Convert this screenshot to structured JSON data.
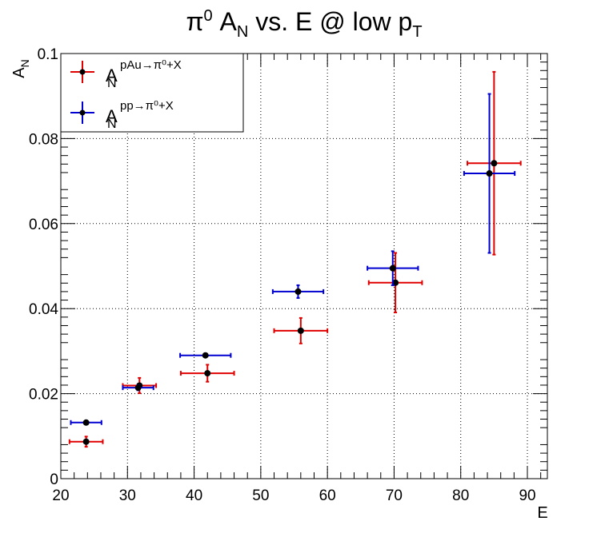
{
  "chart_data": {
    "type": "scatter",
    "title": "π⁰ A_N vs. E @ low p_T",
    "title_parts": {
      "pi": "π",
      "pi_sup": "0",
      "a": " A",
      "a_sub": "N",
      "middle": " vs. E @ low p",
      "p_sub": "T"
    },
    "xlabel": "E",
    "ylabel": "A_N",
    "ylabel_parts": {
      "main": "A",
      "sub": "N"
    },
    "xlim": [
      20,
      93
    ],
    "ylim": [
      0,
      0.1
    ],
    "x_ticks": [
      20,
      30,
      40,
      50,
      60,
      70,
      80,
      90
    ],
    "x_tick_labels": [
      "20",
      "30",
      "40",
      "50",
      "60",
      "70",
      "80",
      "90"
    ],
    "y_ticks": [
      0,
      0.02,
      0.04,
      0.06,
      0.08,
      0.1
    ],
    "y_tick_labels": [
      "0",
      "0.02",
      "0.04",
      "0.06",
      "0.08",
      "0.1"
    ],
    "grid": true,
    "legend_position": "top-left",
    "series": [
      {
        "name": "A_N^{pAu→π⁰+X}",
        "legend_main": "A",
        "legend_sub": "N",
        "legend_sup": "pAu→π⁰+X",
        "color": "#e00000",
        "points": [
          {
            "x": 23.8,
            "y": 0.0087,
            "xerr": 2.5,
            "yerr": 0.0012
          },
          {
            "x": 31.8,
            "y": 0.0219,
            "xerr": 2.5,
            "yerr": 0.0018
          },
          {
            "x": 42.0,
            "y": 0.0248,
            "xerr": 4.0,
            "yerr": 0.002
          },
          {
            "x": 56.0,
            "y": 0.0348,
            "xerr": 4.0,
            "yerr": 0.003
          },
          {
            "x": 70.2,
            "y": 0.0461,
            "xerr": 4.0,
            "yerr": 0.007
          },
          {
            "x": 85.0,
            "y": 0.0742,
            "xerr": 4.0,
            "yerr": 0.0215
          }
        ]
      },
      {
        "name": "A_N^{pp→π⁰+X}",
        "legend_main": "A",
        "legend_sub": "N",
        "legend_sup": "pp→π⁰+X",
        "color": "#0000d0",
        "points": [
          {
            "x": 23.8,
            "y": 0.0132,
            "xerr": 2.3,
            "yerr": 0.0004
          },
          {
            "x": 31.6,
            "y": 0.0214,
            "xerr": 2.3,
            "yerr": 0.0006
          },
          {
            "x": 41.7,
            "y": 0.029,
            "xerr": 3.8,
            "yerr": 0.0004
          },
          {
            "x": 55.6,
            "y": 0.044,
            "xerr": 3.8,
            "yerr": 0.0015
          },
          {
            "x": 69.8,
            "y": 0.0495,
            "xerr": 3.8,
            "yerr": 0.004
          },
          {
            "x": 84.3,
            "y": 0.0718,
            "xerr": 3.8,
            "yerr": 0.0187
          }
        ]
      }
    ]
  }
}
